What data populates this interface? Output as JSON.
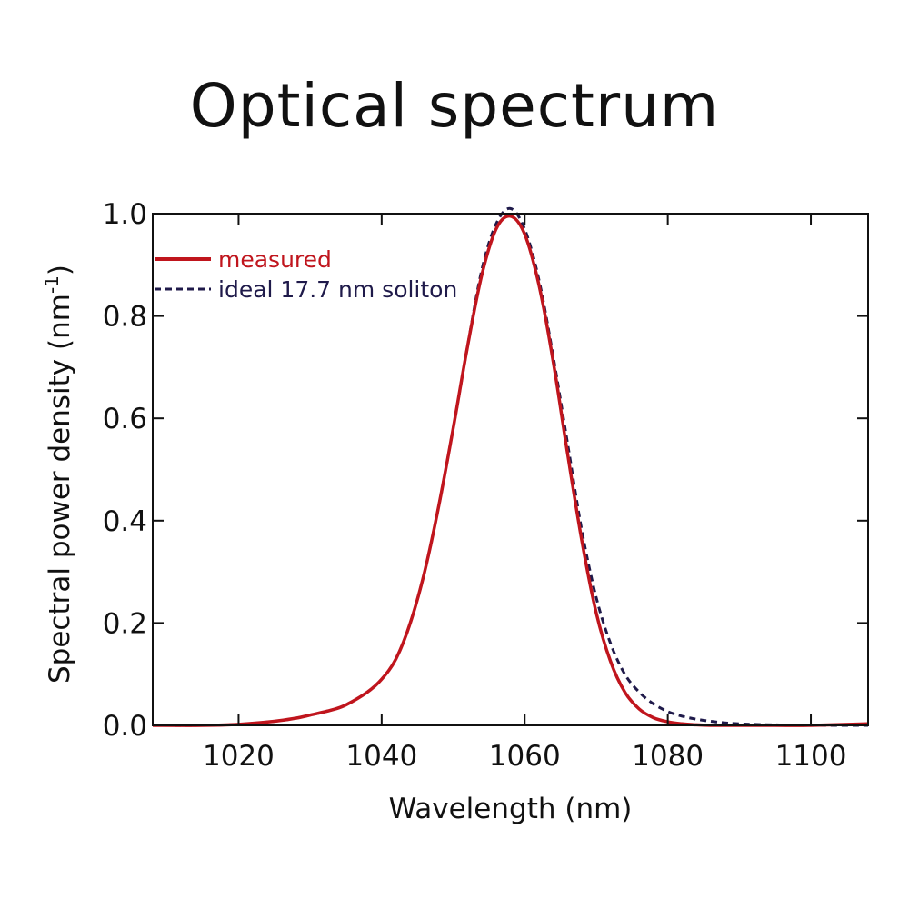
{
  "chart_data": {
    "type": "line",
    "title": "Optical spectrum",
    "xlabel": "Wavelength (nm)",
    "ylabel": "Spectral power density (nm",
    "ylabel_sup": "-1",
    "ylabel_tail": ")",
    "xlim": [
      1008,
      1108
    ],
    "ylim": [
      0,
      1.0
    ],
    "xticks": [
      1020,
      1040,
      1060,
      1080,
      1100
    ],
    "yticks": [
      0.0,
      0.2,
      0.4,
      0.6,
      0.8,
      1.0
    ],
    "xtick_labels": [
      "1020",
      "1040",
      "1060",
      "1080",
      "1100"
    ],
    "ytick_labels": [
      "0.0",
      "0.2",
      "0.4",
      "0.6",
      "0.8",
      "1.0"
    ],
    "grid": false,
    "legend_position": "top-left",
    "series": [
      {
        "name": "measured",
        "color": "#c0151d",
        "style": "solid",
        "x": [
          1008,
          1015,
          1020,
          1025,
          1028,
          1030,
          1033,
          1035,
          1038,
          1040,
          1042,
          1044,
          1046,
          1048,
          1050,
          1052,
          1054,
          1056,
          1058,
          1060,
          1062,
          1064,
          1066,
          1068,
          1070,
          1072,
          1074,
          1076,
          1078,
          1080,
          1082,
          1084,
          1086,
          1088,
          1090,
          1095,
          1100,
          1108
        ],
        "y": [
          0.0,
          0.0,
          0.002,
          0.008,
          0.014,
          0.02,
          0.03,
          0.04,
          0.065,
          0.09,
          0.13,
          0.2,
          0.3,
          0.43,
          0.58,
          0.74,
          0.88,
          0.97,
          0.995,
          0.96,
          0.86,
          0.71,
          0.53,
          0.36,
          0.22,
          0.125,
          0.065,
          0.032,
          0.015,
          0.007,
          0.003,
          0.001,
          0.0,
          0.0,
          0.0,
          0.0,
          0.0,
          0.003
        ]
      },
      {
        "name": "ideal 17.7 nm soliton",
        "color": "#1f1a4a",
        "style": "dashed",
        "x": [
          1008,
          1015,
          1020,
          1025,
          1028,
          1030,
          1033,
          1035,
          1038,
          1040,
          1042,
          1044,
          1046,
          1048,
          1050,
          1052,
          1054,
          1056,
          1058,
          1060,
          1062,
          1064,
          1066,
          1068,
          1070,
          1072,
          1074,
          1076,
          1078,
          1080,
          1082,
          1084,
          1086,
          1088,
          1090,
          1095,
          1100,
          1108
        ],
        "y": [
          0.0,
          0.0,
          0.002,
          0.008,
          0.014,
          0.02,
          0.03,
          0.04,
          0.065,
          0.09,
          0.13,
          0.2,
          0.3,
          0.43,
          0.58,
          0.74,
          0.89,
          0.98,
          1.01,
          0.97,
          0.87,
          0.72,
          0.55,
          0.38,
          0.25,
          0.16,
          0.1,
          0.065,
          0.042,
          0.027,
          0.018,
          0.012,
          0.008,
          0.005,
          0.003,
          0.001,
          0.0,
          0.0
        ]
      }
    ]
  }
}
